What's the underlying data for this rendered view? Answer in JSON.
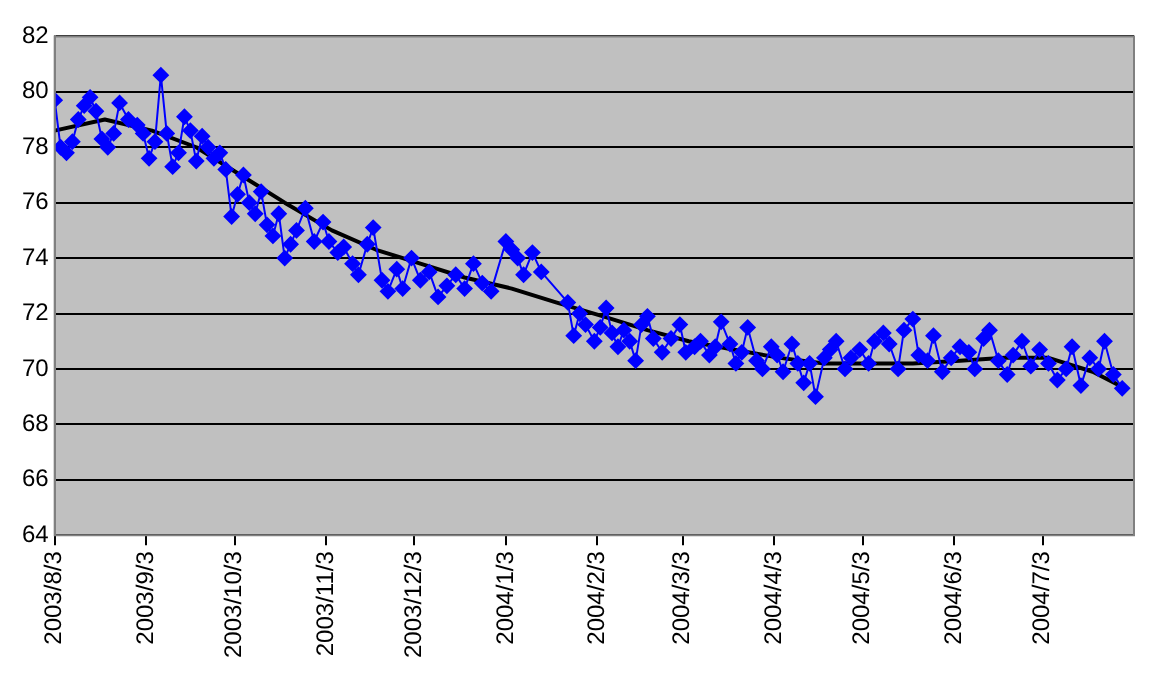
{
  "chart_data": {
    "type": "line",
    "grid": "y",
    "xlim": [
      "2003-08-03",
      "2004-08-03"
    ],
    "ylim": [
      64,
      82
    ],
    "yticks": [
      64,
      66,
      68,
      70,
      72,
      74,
      76,
      78,
      80,
      82
    ],
    "xticks": [
      {
        "value": "2003-08-03",
        "label": "2003/8/3"
      },
      {
        "value": "2003-09-03",
        "label": "2003/9/3"
      },
      {
        "value": "2003-10-03",
        "label": "2003/10/3"
      },
      {
        "value": "2003-11-03",
        "label": "2003/11/3"
      },
      {
        "value": "2003-12-03",
        "label": "2003/12/3"
      },
      {
        "value": "2004-01-03",
        "label": "2004/1/3"
      },
      {
        "value": "2004-02-03",
        "label": "2004/2/3"
      },
      {
        "value": "2004-03-03",
        "label": "2004/3/3"
      },
      {
        "value": "2004-04-03",
        "label": "2004/4/3"
      },
      {
        "value": "2004-05-03",
        "label": "2004/5/3"
      },
      {
        "value": "2004-06-03",
        "label": "2004/6/3"
      },
      {
        "value": "2004-07-03",
        "label": "2004/7/3"
      }
    ],
    "series": [
      {
        "color": "#0000ff",
        "marker": "diamond",
        "x": [
          "2003-08-03",
          "2003-08-05",
          "2003-08-07",
          "2003-08-09",
          "2003-08-11",
          "2003-08-13",
          "2003-08-15",
          "2003-08-17",
          "2003-08-19",
          "2003-08-21",
          "2003-08-23",
          "2003-08-25",
          "2003-08-28",
          "2003-08-31",
          "2003-09-02",
          "2003-09-04",
          "2003-09-06",
          "2003-09-08",
          "2003-09-10",
          "2003-09-12",
          "2003-09-14",
          "2003-09-16",
          "2003-09-18",
          "2003-09-20",
          "2003-09-22",
          "2003-09-24",
          "2003-09-26",
          "2003-09-28",
          "2003-09-30",
          "2003-10-02",
          "2003-10-04",
          "2003-10-06",
          "2003-10-08",
          "2003-10-10",
          "2003-10-12",
          "2003-10-14",
          "2003-10-16",
          "2003-10-18",
          "2003-10-20",
          "2003-10-22",
          "2003-10-24",
          "2003-10-27",
          "2003-10-30",
          "2003-11-02",
          "2003-11-04",
          "2003-11-07",
          "2003-11-09",
          "2003-11-12",
          "2003-11-14",
          "2003-11-17",
          "2003-11-19",
          "2003-11-22",
          "2003-11-24",
          "2003-11-27",
          "2003-11-29",
          "2003-12-02",
          "2003-12-05",
          "2003-12-08",
          "2003-12-11",
          "2003-12-14",
          "2003-12-17",
          "2003-12-20",
          "2003-12-23",
          "2003-12-26",
          "2003-12-29",
          "2004-01-03",
          "2004-01-05",
          "2004-01-07",
          "2004-01-09",
          "2004-01-12",
          "2004-01-15",
          "2004-01-24",
          "2004-01-26",
          "2004-01-28",
          "2004-01-30",
          "2004-02-02",
          "2004-02-04",
          "2004-02-06",
          "2004-02-08",
          "2004-02-10",
          "2004-02-12",
          "2004-02-14",
          "2004-02-16",
          "2004-02-18",
          "2004-02-20",
          "2004-02-22",
          "2004-02-25",
          "2004-02-28",
          "2004-03-02",
          "2004-03-04",
          "2004-03-07",
          "2004-03-09",
          "2004-03-12",
          "2004-03-14",
          "2004-03-16",
          "2004-03-19",
          "2004-03-21",
          "2004-03-23",
          "2004-03-25",
          "2004-03-28",
          "2004-03-30",
          "2004-04-02",
          "2004-04-04",
          "2004-04-06",
          "2004-04-09",
          "2004-04-11",
          "2004-04-13",
          "2004-04-15",
          "2004-04-17",
          "2004-04-20",
          "2004-04-22",
          "2004-04-24",
          "2004-04-27",
          "2004-04-29",
          "2004-05-02",
          "2004-05-05",
          "2004-05-07",
          "2004-05-10",
          "2004-05-12",
          "2004-05-15",
          "2004-05-17",
          "2004-05-20",
          "2004-05-22",
          "2004-05-25",
          "2004-05-27",
          "2004-05-30",
          "2004-06-02",
          "2004-06-05",
          "2004-06-08",
          "2004-06-10",
          "2004-06-13",
          "2004-06-15",
          "2004-06-18",
          "2004-06-21",
          "2004-06-23",
          "2004-06-26",
          "2004-06-29",
          "2004-07-02",
          "2004-07-05",
          "2004-07-08",
          "2004-07-11",
          "2004-07-13",
          "2004-07-16",
          "2004-07-19",
          "2004-07-22",
          "2004-07-24",
          "2004-07-27",
          "2004-07-30"
        ],
        "values": [
          79.7,
          78.0,
          77.8,
          78.2,
          79.0,
          79.5,
          79.8,
          79.3,
          78.3,
          78.0,
          78.5,
          79.6,
          79.0,
          78.8,
          78.5,
          77.6,
          78.2,
          80.6,
          78.5,
          77.3,
          77.8,
          79.1,
          78.6,
          77.5,
          78.4,
          78.0,
          77.6,
          77.8,
          77.2,
          75.5,
          76.3,
          77.0,
          76.0,
          75.6,
          76.4,
          75.2,
          74.8,
          75.6,
          74.0,
          74.5,
          75.0,
          75.8,
          74.6,
          75.3,
          74.6,
          74.2,
          74.4,
          73.8,
          73.4,
          74.5,
          75.1,
          73.2,
          72.8,
          73.6,
          72.9,
          74.0,
          73.2,
          73.5,
          72.6,
          73.0,
          73.4,
          72.9,
          73.8,
          73.1,
          72.8,
          74.6,
          74.3,
          74.0,
          73.4,
          74.2,
          73.5,
          72.4,
          71.2,
          72.0,
          71.6,
          71.0,
          71.5,
          72.2,
          71.3,
          70.8,
          71.4,
          71.0,
          70.3,
          71.6,
          71.9,
          71.1,
          70.6,
          71.1,
          71.6,
          70.6,
          70.8,
          71.0,
          70.5,
          70.8,
          71.7,
          70.9,
          70.2,
          70.6,
          71.5,
          70.3,
          70.0,
          70.8,
          70.5,
          69.9,
          70.9,
          70.2,
          69.5,
          70.2,
          69.0,
          70.4,
          70.7,
          71.0,
          70.0,
          70.4,
          70.7,
          70.2,
          71.0,
          71.3,
          70.9,
          70.0,
          71.4,
          71.8,
          70.5,
          70.3,
          71.2,
          69.9,
          70.4,
          70.8,
          70.6,
          70.0,
          71.1,
          71.4,
          70.3,
          69.8,
          70.5,
          71.0,
          70.1,
          70.7,
          70.2,
          69.6,
          70.0,
          70.8,
          69.4,
          70.4,
          70.0,
          71.0,
          69.8,
          69.3
        ]
      },
      {
        "type": "line",
        "color": "#000000",
        "marker": "none",
        "x": [
          "2003-08-03",
          "2003-08-20",
          "2003-09-05",
          "2003-09-20",
          "2003-10-05",
          "2003-10-20",
          "2003-11-05",
          "2003-11-20",
          "2003-12-05",
          "2003-12-20",
          "2004-01-05",
          "2004-01-20",
          "2004-02-05",
          "2004-02-20",
          "2004-03-05",
          "2004-03-20",
          "2004-04-05",
          "2004-04-20",
          "2004-05-05",
          "2004-05-20",
          "2004-06-05",
          "2004-06-20",
          "2004-07-05",
          "2004-07-20",
          "2004-07-31"
        ],
        "values": [
          78.6,
          79.0,
          78.6,
          78.0,
          77.0,
          76.0,
          75.0,
          74.3,
          73.8,
          73.3,
          72.9,
          72.4,
          71.9,
          71.4,
          71.0,
          70.7,
          70.4,
          70.2,
          70.2,
          70.2,
          70.3,
          70.4,
          70.4,
          69.9,
          69.3
        ]
      }
    ]
  }
}
